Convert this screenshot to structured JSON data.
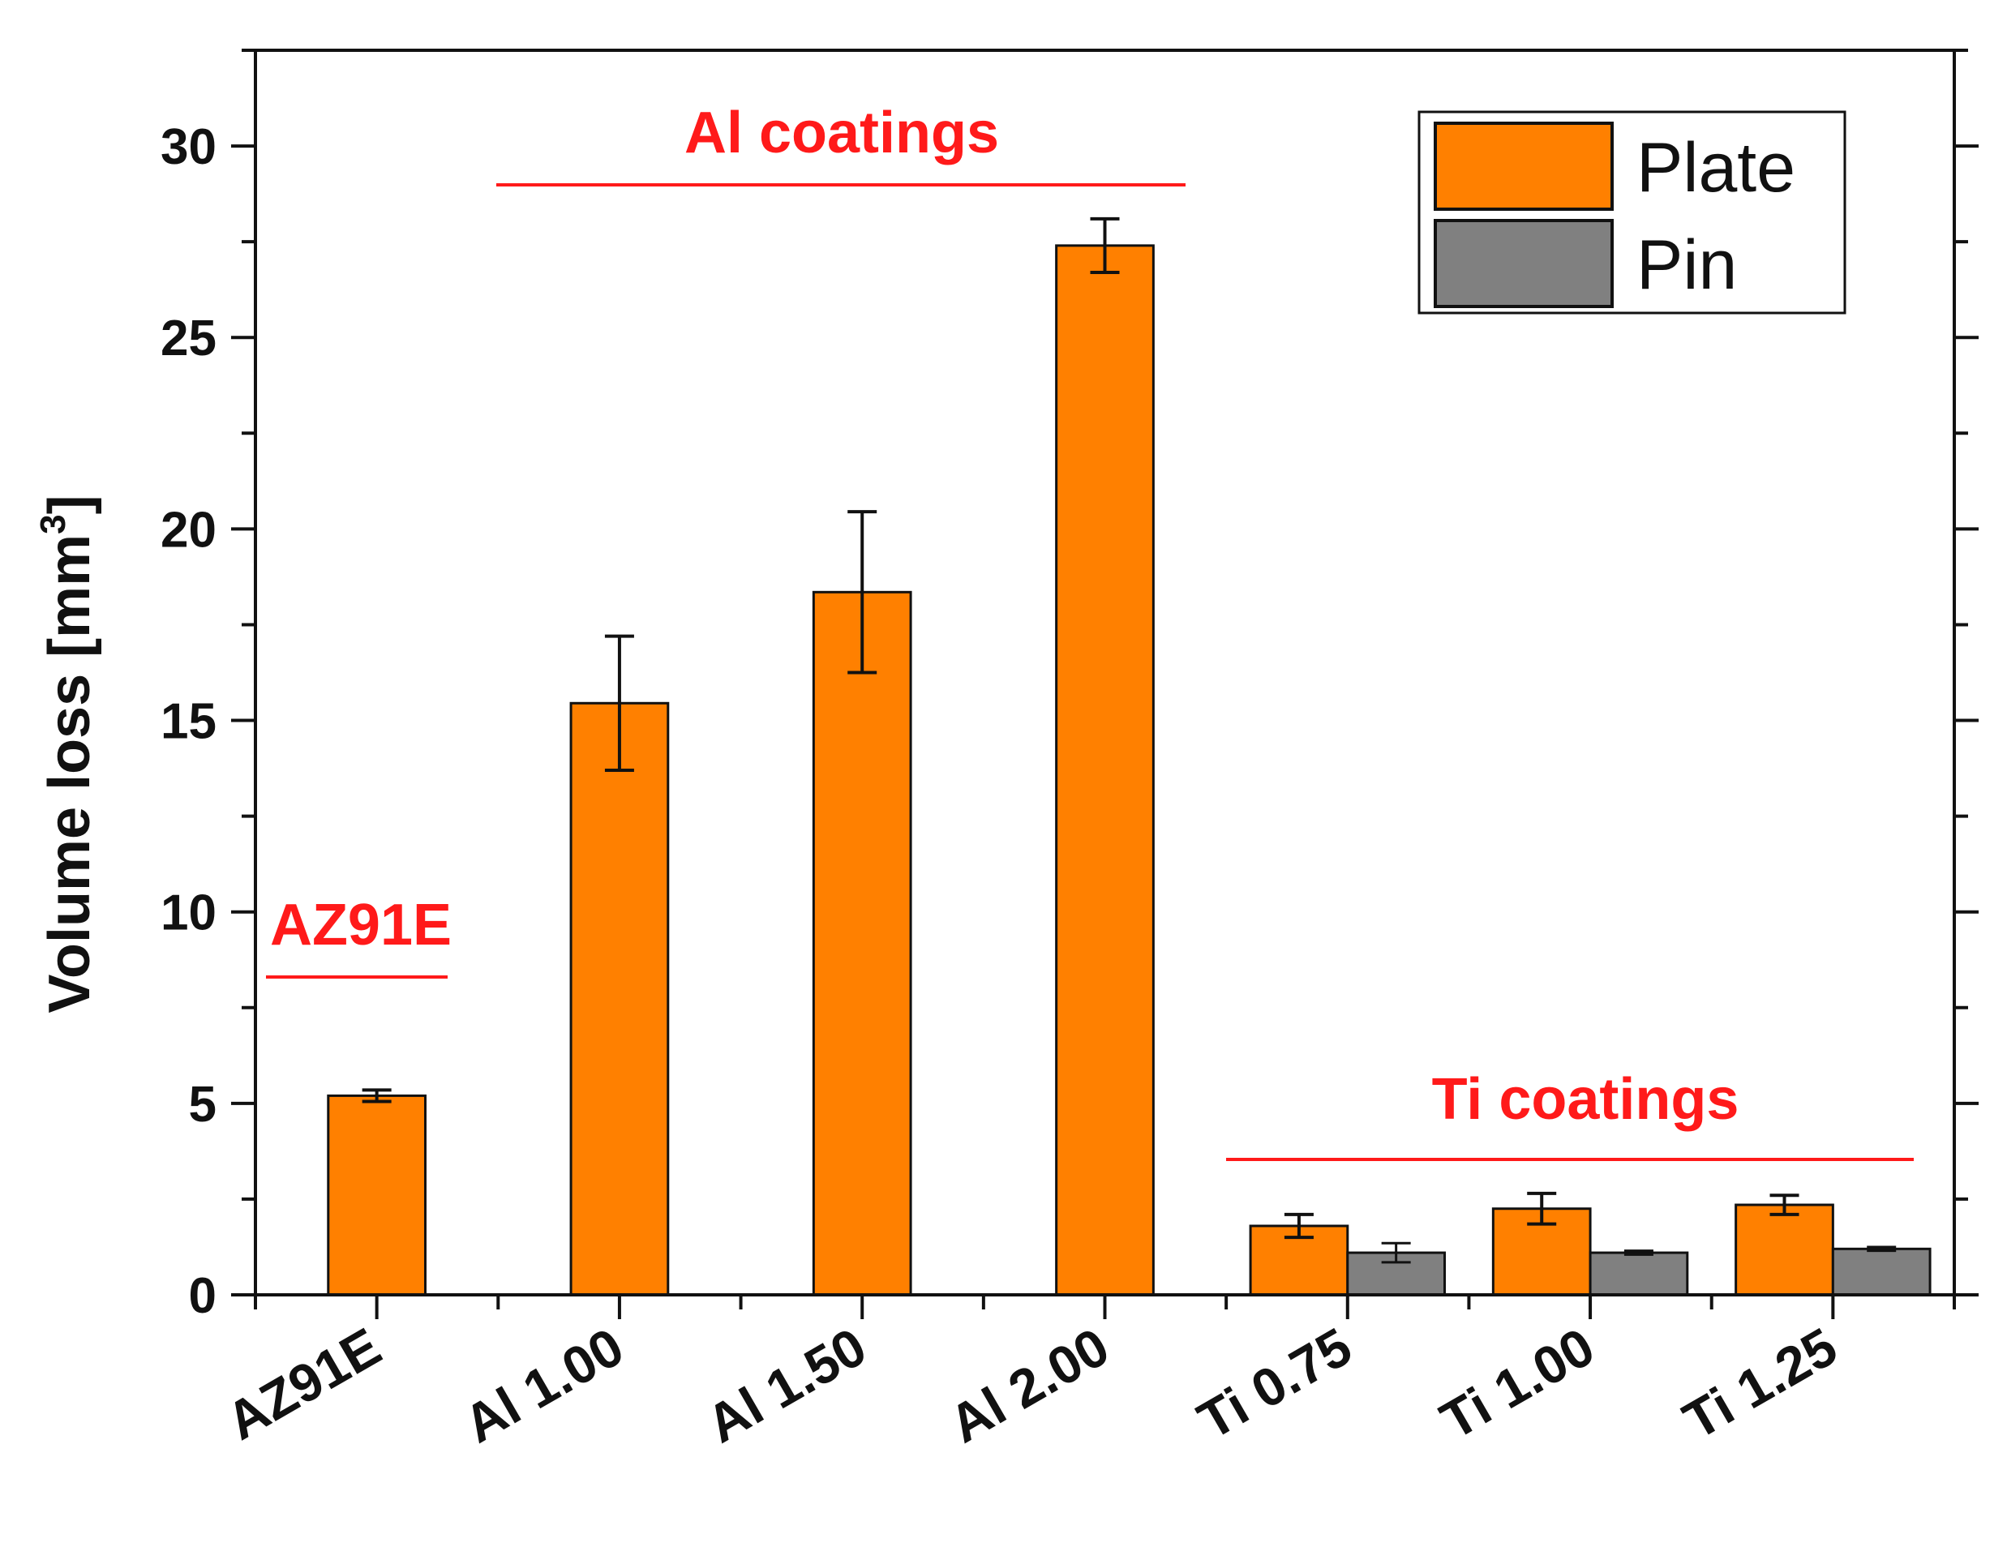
{
  "chart_data": {
    "type": "bar",
    "ylabel": "Volume loss [mm",
    "ylabel_sup": "3",
    "ylabel_close": "]",
    "ylim": [
      0,
      32.5
    ],
    "yticks": [
      "0",
      "5",
      "10",
      "15",
      "20",
      "25",
      "30"
    ],
    "categories": [
      "AZ91E",
      "Al 1.00",
      "Al 1.50",
      "Al 2.00",
      "Ti 0.75",
      "Ti 1.00",
      "Ti 1.25"
    ],
    "series": [
      {
        "name": "Plate",
        "color": "#ff8000",
        "values": [
          5.2,
          15.45,
          18.35,
          27.4,
          1.8,
          2.25,
          2.35
        ],
        "errors": [
          0.15,
          1.75,
          2.1,
          0.7,
          0.3,
          0.4,
          0.25
        ]
      },
      {
        "name": "Pin",
        "color": "#808080",
        "values": [
          null,
          null,
          null,
          null,
          1.1,
          1.1,
          1.2
        ],
        "errors": [
          null,
          null,
          null,
          null,
          0.25,
          0.05,
          0.05
        ]
      }
    ],
    "legend_position": "top-right",
    "annotations": {
      "az91e_label": "AZ91E",
      "al_label": "Al coatings",
      "ti_label": "Ti coatings",
      "color": "#ff1a1a"
    }
  }
}
